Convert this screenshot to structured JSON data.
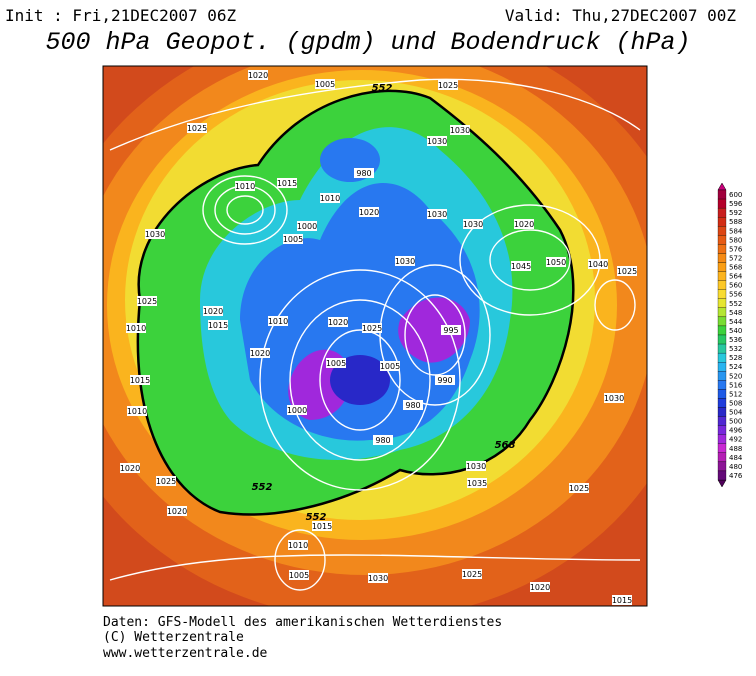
{
  "header": {
    "init": "Init : Fri,21DEC2007 06Z",
    "valid": "Valid: Thu,27DEC2007 00Z",
    "title": "500 hPa Geopot. (gpdm) und Bodendruck (hPa)"
  },
  "map": {
    "isobar_labels": [
      "1020",
      "1005",
      "1025",
      "1025",
      "1030",
      "1030",
      "980",
      "1010",
      "1015",
      "1010",
      "1020",
      "1030",
      "1030",
      "1020",
      "1030",
      "1000",
      "1005",
      "1030",
      "1045",
      "1050",
      "1040",
      "1025",
      "1025",
      "1020",
      "1010",
      "1015",
      "1010",
      "1020",
      "1025",
      "995",
      "1020",
      "1005",
      "1005",
      "1015",
      "990",
      "1000",
      "980",
      "980",
      "1030",
      "1010",
      "1020",
      "1025",
      "1030",
      "1035",
      "1025",
      "1020",
      "1015",
      "1010",
      "1005",
      "1030",
      "1025",
      "1020",
      "1015"
    ],
    "height_labels": [
      "552",
      "568",
      "552",
      "552"
    ]
  },
  "colorbar": {
    "levels": [
      600,
      596,
      592,
      588,
      584,
      580,
      576,
      572,
      568,
      564,
      560,
      556,
      552,
      548,
      544,
      540,
      536,
      532,
      528,
      524,
      520,
      516,
      512,
      508,
      504,
      500,
      496,
      492,
      488,
      484,
      480,
      476
    ],
    "colors": [
      "#a0003c",
      "#b4002a",
      "#c81e1e",
      "#d22d14",
      "#dc4614",
      "#e65a14",
      "#ee7014",
      "#f58a14",
      "#fa9e14",
      "#fcb41e",
      "#fcc828",
      "#f8dc32",
      "#e6e632",
      "#b4e632",
      "#78dc32",
      "#3cd23c",
      "#28c864",
      "#28c8a0",
      "#28c8dc",
      "#28b4f0",
      "#2896f0",
      "#2878f0",
      "#1e5ae6",
      "#1e3cdc",
      "#2828c8",
      "#5028d2",
      "#7828dc",
      "#a028dc",
      "#c828d2",
      "#b41eb4",
      "#8c1496",
      "#640a78"
    ]
  },
  "footer": {
    "line1": "Daten: GFS-Modell des amerikanischen Wetterdienstes",
    "line2": "(C) Wetterzentrale",
    "line3": "www.wetterzentrale.de"
  }
}
